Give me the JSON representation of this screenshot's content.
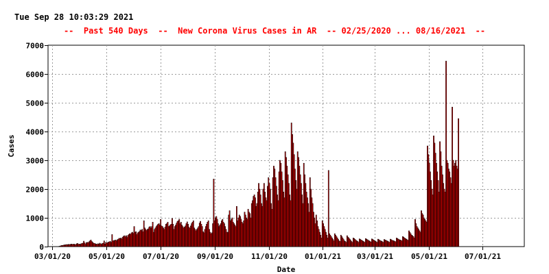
{
  "timestamp": "Tue Sep 28 10:03:29 2021",
  "chart_data": {
    "type": "bar",
    "title": "--  Past 540 Days  --  New Corona Virus Cases in AR  -- 02/25/2020 ... 08/16/2021  --",
    "xlabel": "Date",
    "ylabel": "Cases",
    "ylim": [
      0,
      7000
    ],
    "yticks": [
      0,
      1000,
      2000,
      3000,
      4000,
      5000,
      6000,
      7000
    ],
    "xlim": [
      "2020-02-25",
      "2021-08-17"
    ],
    "xticks": [
      "03/01/20",
      "05/01/20",
      "07/01/20",
      "09/01/20",
      "11/01/20",
      "01/01/21",
      "03/01/21",
      "05/01/21",
      "07/01/21"
    ],
    "grid": true,
    "colors": {
      "bar_fill": "#cc0000",
      "bar_edge": "#000000",
      "title": "#ff0000"
    },
    "series": [
      {
        "start_date": "2020-02-25",
        "interval": "daily",
        "values": [
          0,
          0,
          0,
          0,
          0,
          0,
          0,
          0,
          0,
          0,
          0,
          0,
          10,
          20,
          30,
          40,
          40,
          50,
          60,
          60,
          70,
          70,
          70,
          80,
          70,
          80,
          90,
          80,
          80,
          90,
          60,
          80,
          100,
          110,
          80,
          90,
          80,
          100,
          110,
          120,
          190,
          130,
          80,
          140,
          150,
          140,
          170,
          200,
          230,
          180,
          150,
          120,
          110,
          100,
          90,
          80,
          100,
          90,
          120,
          100,
          80,
          110,
          120,
          200,
          90,
          150,
          130,
          140,
          160,
          170,
          180,
          150,
          420,
          200,
          210,
          220,
          230,
          200,
          240,
          260,
          290,
          280,
          300,
          270,
          330,
          360,
          380,
          340,
          380,
          320,
          390,
          420,
          450,
          430,
          480,
          500,
          460,
          700,
          500,
          520,
          420,
          480,
          500,
          530,
          580,
          560,
          600,
          520,
          900,
          650,
          600,
          560,
          600,
          620,
          680,
          700,
          650,
          700,
          850,
          500,
          600,
          650,
          700,
          740,
          780,
          800,
          750,
          950,
          720,
          700,
          650,
          600,
          680,
          780,
          800,
          850,
          700,
          720,
          760,
          780,
          980,
          780,
          600,
          700,
          750,
          820,
          880,
          900,
          950,
          800,
          850,
          750,
          700,
          650,
          680,
          720,
          800,
          860,
          780,
          680,
          640,
          720,
          800,
          850,
          900,
          650,
          600,
          550,
          600,
          650,
          700,
          820,
          880,
          780,
          700,
          520,
          480,
          600,
          700,
          780,
          850,
          900,
          600,
          500,
          450,
          480,
          800,
          2350,
          900,
          1000,
          1050,
          950,
          800,
          700,
          750,
          800,
          900,
          950,
          850,
          800,
          700,
          600,
          500,
          500,
          1100,
          1250,
          900,
          950,
          1000,
          850,
          800,
          750,
          700,
          1400,
          900,
          1000,
          1100,
          1050,
          950,
          850,
          800,
          900,
          1200,
          1100,
          1000,
          950,
          1300,
          1200,
          1150,
          1000,
          1500,
          1600,
          1750,
          1800,
          1700,
          1400,
          1500,
          1900,
          2200,
          2000,
          1800,
          1500,
          1400,
          2000,
          2200,
          1900,
          1700,
          1600,
          2100,
          2400,
          2200,
          2000,
          1500,
          1300,
          2400,
          2800,
          2700,
          2400,
          2100,
          1800,
          1600,
          2600,
          3000,
          2900,
          2600,
          2300,
          1900,
          1700,
          3300,
          3100,
          2800,
          2500,
          2200,
          1800,
          1600,
          4300,
          3900,
          3600,
          3200,
          2700,
          2300,
          2000,
          3300,
          3100,
          2800,
          2500,
          2200,
          1800,
          1500,
          2900,
          2500,
          2200,
          1900,
          1700,
          1500,
          1200,
          2400,
          2000,
          1700,
          1500,
          1200,
          1000,
          800,
          1100,
          900,
          700,
          600,
          500,
          400,
          300,
          900,
          800,
          700,
          600,
          500,
          400,
          300,
          2650,
          450,
          400,
          350,
          300,
          250,
          200,
          450,
          400,
          350,
          300,
          250,
          200,
          180,
          400,
          350,
          300,
          250,
          200,
          180,
          150,
          380,
          330,
          300,
          260,
          220,
          180,
          150,
          300,
          280,
          250,
          220,
          200,
          180,
          150,
          270,
          250,
          230,
          210,
          190,
          170,
          150,
          280,
          260,
          240,
          220,
          200,
          180,
          160,
          270,
          250,
          230,
          210,
          190,
          170,
          150,
          260,
          240,
          220,
          200,
          190,
          170,
          150,
          250,
          230,
          220,
          200,
          190,
          170,
          150,
          260,
          240,
          220,
          210,
          200,
          180,
          170,
          300,
          280,
          260,
          240,
          230,
          220,
          200,
          350,
          330,
          300,
          280,
          260,
          240,
          220,
          550,
          500,
          450,
          400,
          380,
          350,
          300,
          950,
          800,
          700,
          650,
          600,
          550,
          500,
          1250,
          1150,
          1100,
          1000,
          950,
          900,
          850,
          3500,
          3200,
          2900,
          2600,
          2300,
          2000,
          1800,
          3850,
          3600,
          3250,
          2900,
          2600,
          2300,
          1900,
          3650,
          3300,
          2800,
          2500,
          2200,
          2000,
          1900,
          6450,
          3000,
          2900,
          2700,
          2600,
          2400,
          2200,
          4850,
          3000,
          2800,
          2900,
          3000,
          2800,
          2700,
          4450
        ]
      }
    ]
  }
}
